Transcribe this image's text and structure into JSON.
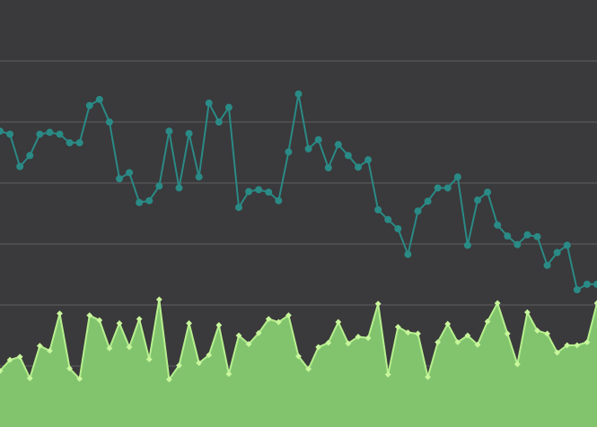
{
  "theme": {
    "background": "#3a393b",
    "grid_color": "#5e5d60",
    "line_color": "#2a8a86",
    "area_fill": "#82c46e",
    "area_stroke": "#b6f08e",
    "area_marker": "#c8f79c"
  },
  "chart_data": {
    "type": "area",
    "title": "",
    "xlabel": "",
    "ylabel": "",
    "grid": true,
    "ylim": [
      0,
      7
    ],
    "gridlines": [
      1,
      2,
      3,
      4,
      5,
      6
    ],
    "x": [
      0,
      1,
      2,
      3,
      4,
      5,
      6,
      7,
      8,
      9,
      10,
      11,
      12,
      13,
      14,
      15,
      16,
      17,
      18,
      19,
      20,
      21,
      22,
      23,
      24,
      25,
      26,
      27,
      28,
      29,
      30,
      31,
      32,
      33,
      34,
      35,
      36,
      37,
      38,
      39,
      40,
      41,
      42,
      43,
      44,
      45,
      46,
      47,
      48,
      49,
      50,
      51,
      52,
      53,
      54,
      55,
      56,
      57,
      58,
      59,
      60
    ],
    "series": [
      {
        "type": "line",
        "markers": "circle",
        "values": [
          4.85,
          4.8,
          4.27,
          4.45,
          4.8,
          4.83,
          4.8,
          4.66,
          4.66,
          5.27,
          5.37,
          5.0,
          4.07,
          4.17,
          3.68,
          3.71,
          3.95,
          4.85,
          3.92,
          4.81,
          4.1,
          5.31,
          5.0,
          5.24,
          3.6,
          3.86,
          3.89,
          3.85,
          3.71,
          4.51,
          5.46,
          4.56,
          4.71,
          4.25,
          4.63,
          4.45,
          4.26,
          4.38,
          3.56,
          3.4,
          3.25,
          2.83,
          3.54,
          3.7,
          3.92,
          3.92,
          4.1,
          2.98,
          3.72,
          3.85,
          3.31,
          3.13,
          2.99,
          3.15,
          3.12,
          2.65,
          2.86,
          2.98,
          2.25,
          2.34,
          2.34
        ]
      },
      {
        "type": "area",
        "markers": "diamond",
        "values": [
          0.92,
          1.1,
          1.15,
          0.8,
          1.33,
          1.25,
          1.86,
          0.96,
          0.79,
          1.83,
          1.75,
          1.29,
          1.7,
          1.31,
          1.77,
          1.11,
          2.09,
          0.78,
          1.01,
          1.7,
          1.05,
          1.18,
          1.67,
          0.87,
          1.5,
          1.36,
          1.54,
          1.77,
          1.72,
          1.83,
          1.16,
          0.95,
          1.31,
          1.38,
          1.72,
          1.37,
          1.48,
          1.46,
          2.02,
          0.86,
          1.64,
          1.55,
          1.53,
          0.82,
          1.39,
          1.69,
          1.39,
          1.5,
          1.35,
          1.73,
          2.03,
          1.53,
          1.03,
          1.88,
          1.58,
          1.53,
          1.22,
          1.34,
          1.34,
          1.39,
          2.03
        ]
      }
    ]
  }
}
